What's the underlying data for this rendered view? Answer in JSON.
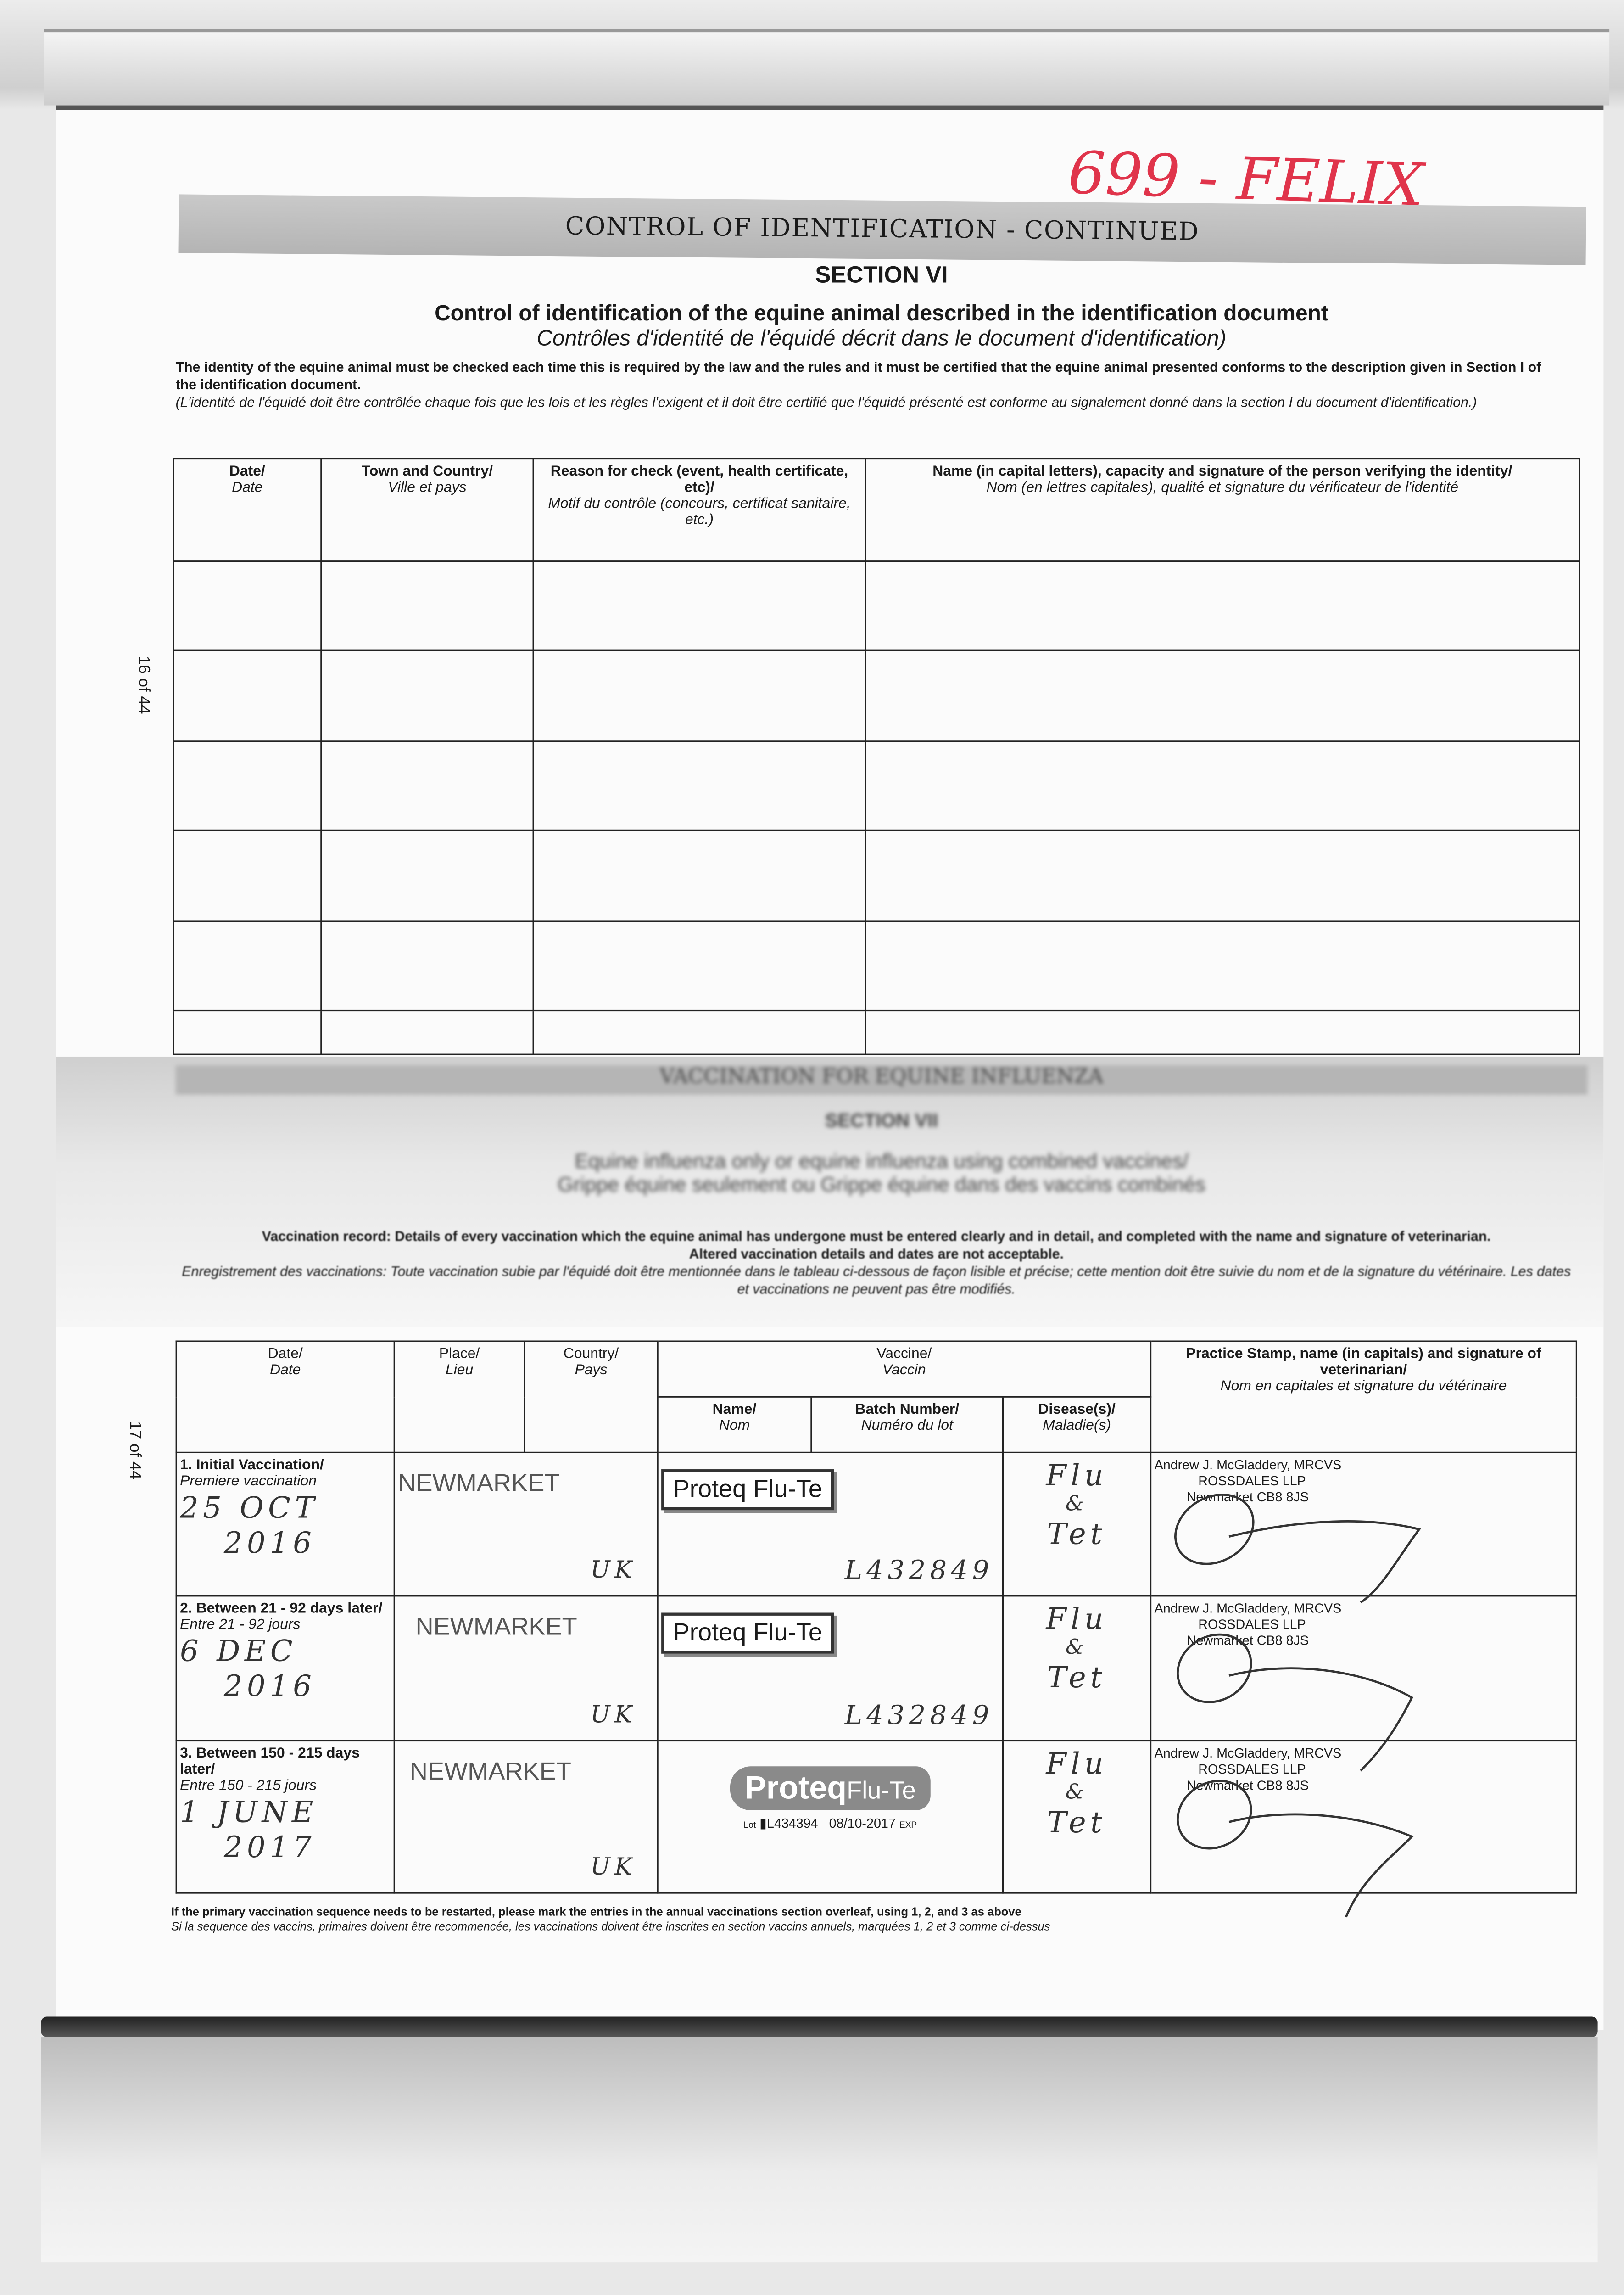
{
  "annotation": "699 - FELIX",
  "banner": "CONTROL OF IDENTIFICATION - CONTINUED",
  "section6": {
    "section_label": "SECTION VI",
    "title_en": "Control of identification of the equine animal described in the identification document",
    "title_fr": "Contrôles d'identité de l'équidé décrit dans le document d'identification)",
    "intro_en": "The identity of the equine animal must be checked each time this is required by the law and the rules and it must be certified that the equine animal presented conforms to the description given in Section I of the identification document.",
    "intro_fr": "(L'identité de l'équidé doit être contrôlée chaque fois que les lois et les règles l'exigent et il doit être certifié que l'équidé présenté est conforme au signalement donné dans la section I du document d'identification.)",
    "page_number": "16 of 44",
    "headers": [
      {
        "en": "Date/",
        "fr": "Date"
      },
      {
        "en": "Town and Country/",
        "fr": "Ville et pays"
      },
      {
        "en": "Reason for check (event, health certificate, etc)/",
        "fr": "Motif du contrôle (concours, certificat sanitaire, etc.)"
      },
      {
        "en": "Name (in capital letters), capacity and signature of the person verifying the identity/",
        "fr": "Nom (en lettres capitales), qualité et signature du vérificateur de l'identité"
      }
    ]
  },
  "section7": {
    "banner": "VACCINATION FOR EQUINE INFLUENZA",
    "section_label": "SECTION VII",
    "title_en": "Equine influenza only or equine influenza using combined vaccines/",
    "title_fr": "Grippe équine seulement ou Grippe équine dans des vaccins combinés",
    "record_en": "Vaccination record: Details of every vaccination which the equine animal has undergone must be entered clearly and in detail, and completed with the name and signature of veterinarian.",
    "record_en2": "Altered vaccination details and dates are not acceptable.",
    "record_fr": "Enregistrement des vaccinations: Toute vaccination subie par l'équidé doit être mentionnée dans le tableau ci-dessous de façon lisible et précise; cette mention doit être suivie du nom et de la signature du vétérinaire. Les dates et vaccinations ne peuvent pas être modifiés.",
    "page_number": "17 of 44",
    "headers": {
      "date": {
        "en": "Date/",
        "fr": "Date"
      },
      "place": {
        "en": "Place/",
        "fr": "Lieu"
      },
      "country": {
        "en": "Country/",
        "fr": "Pays"
      },
      "vaccine": {
        "en": "Vaccine/",
        "fr": "Vaccin"
      },
      "name": {
        "en": "Name/",
        "fr": "Nom"
      },
      "batch": {
        "en": "Batch Number/",
        "fr": "Numéro du lot"
      },
      "disease": {
        "en": "Disease(s)/",
        "fr": "Maladie(s)"
      },
      "stamp": {
        "en": "Practice Stamp, name (in capitals) and signature of veterinarian/",
        "fr": "Nom en capitales et signature du vétérinaire"
      }
    },
    "rows": [
      {
        "label_en": "1. Initial Vaccination/",
        "label_fr": "Premiere vaccination",
        "date_line1": "25 OCT",
        "date_line2": "2016",
        "place": "NEWMARKET",
        "country": "UK",
        "vaccine_name": "Proteq Flu-Te",
        "batch": "L432849",
        "disease_line1": "Flu",
        "disease_line2": "&",
        "disease_line3": "Tet",
        "vet_name": "Andrew J. McGladdery, MRCVS",
        "vet_practice": "ROSSDALES LLP",
        "vet_address": "Newmarket CB8 8JS"
      },
      {
        "label_en": "2. Between 21 - 92 days later/",
        "label_fr": "Entre 21 - 92 jours",
        "date_line1": "6 DEC",
        "date_line2": "2016",
        "place": "NEWMARKET",
        "country": "UK",
        "vaccine_name": "Proteq Flu-Te",
        "batch": "L432849",
        "disease_line1": "Flu",
        "disease_line2": "&",
        "disease_line3": "Tet",
        "vet_name": "Andrew J. McGladdery, MRCVS",
        "vet_practice": "ROSSDALES LLP",
        "vet_address": "Newmarket CB8 8JS"
      },
      {
        "label_en": "3. Between 150 - 215 days later/",
        "label_fr": "Entre 150 - 215 jours",
        "date_line1": "1 JUNE",
        "date_line2": "2017",
        "place": "NEWMARKET",
        "country": "UK",
        "vaccine_name": "Proteq Flu-Te",
        "vaccine_logo_main": "Proteq",
        "vaccine_logo_sub": "Flu-Te",
        "lot_label": "Lot",
        "batch": "L434394",
        "expiry": "08/10-2017",
        "exp_label": "EXP",
        "disease_line1": "Flu",
        "disease_line2": "&",
        "disease_line3": "Tet",
        "vet_name": "Andrew J. McGladdery, MRCVS",
        "vet_practice": "ROSSDALES LLP",
        "vet_address": "Newmarket CB8 8JS"
      }
    ],
    "footer_en": "If the primary vaccination sequence needs to be restarted, please mark the entries in the annual vaccinations section overleaf, using 1, 2, and 3 as above",
    "footer_fr": "Si la sequence des vaccins, primaires doivent être recommencée, les vaccinations doivent être inscrites en section vaccins annuels, marquées 1, 2 et 3 comme ci-dessus"
  }
}
